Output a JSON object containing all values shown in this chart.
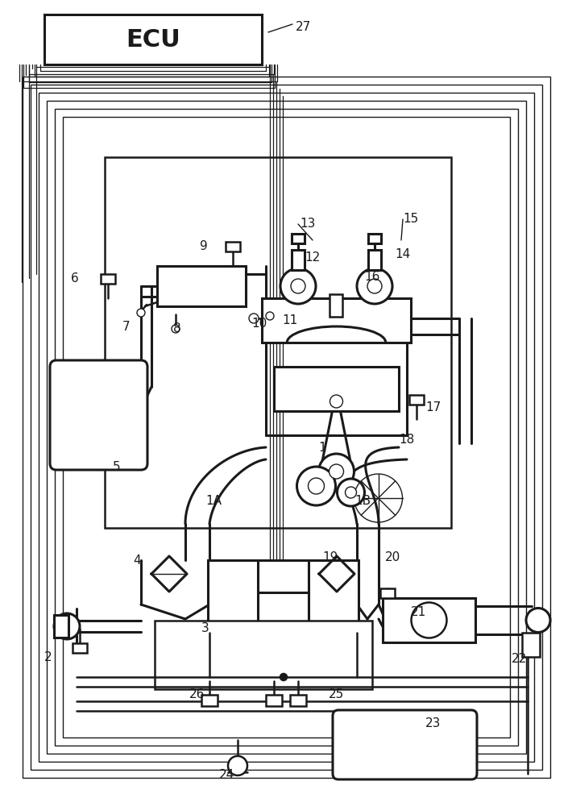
{
  "bg": "#ffffff",
  "lc": "#1a1a1a",
  "figw": 7.1,
  "figh": 10.0,
  "dpi": 100,
  "lw_main": 1.8,
  "lw_thick": 2.2,
  "lw_thin": 1.0,
  "lw_wire": 0.9
}
